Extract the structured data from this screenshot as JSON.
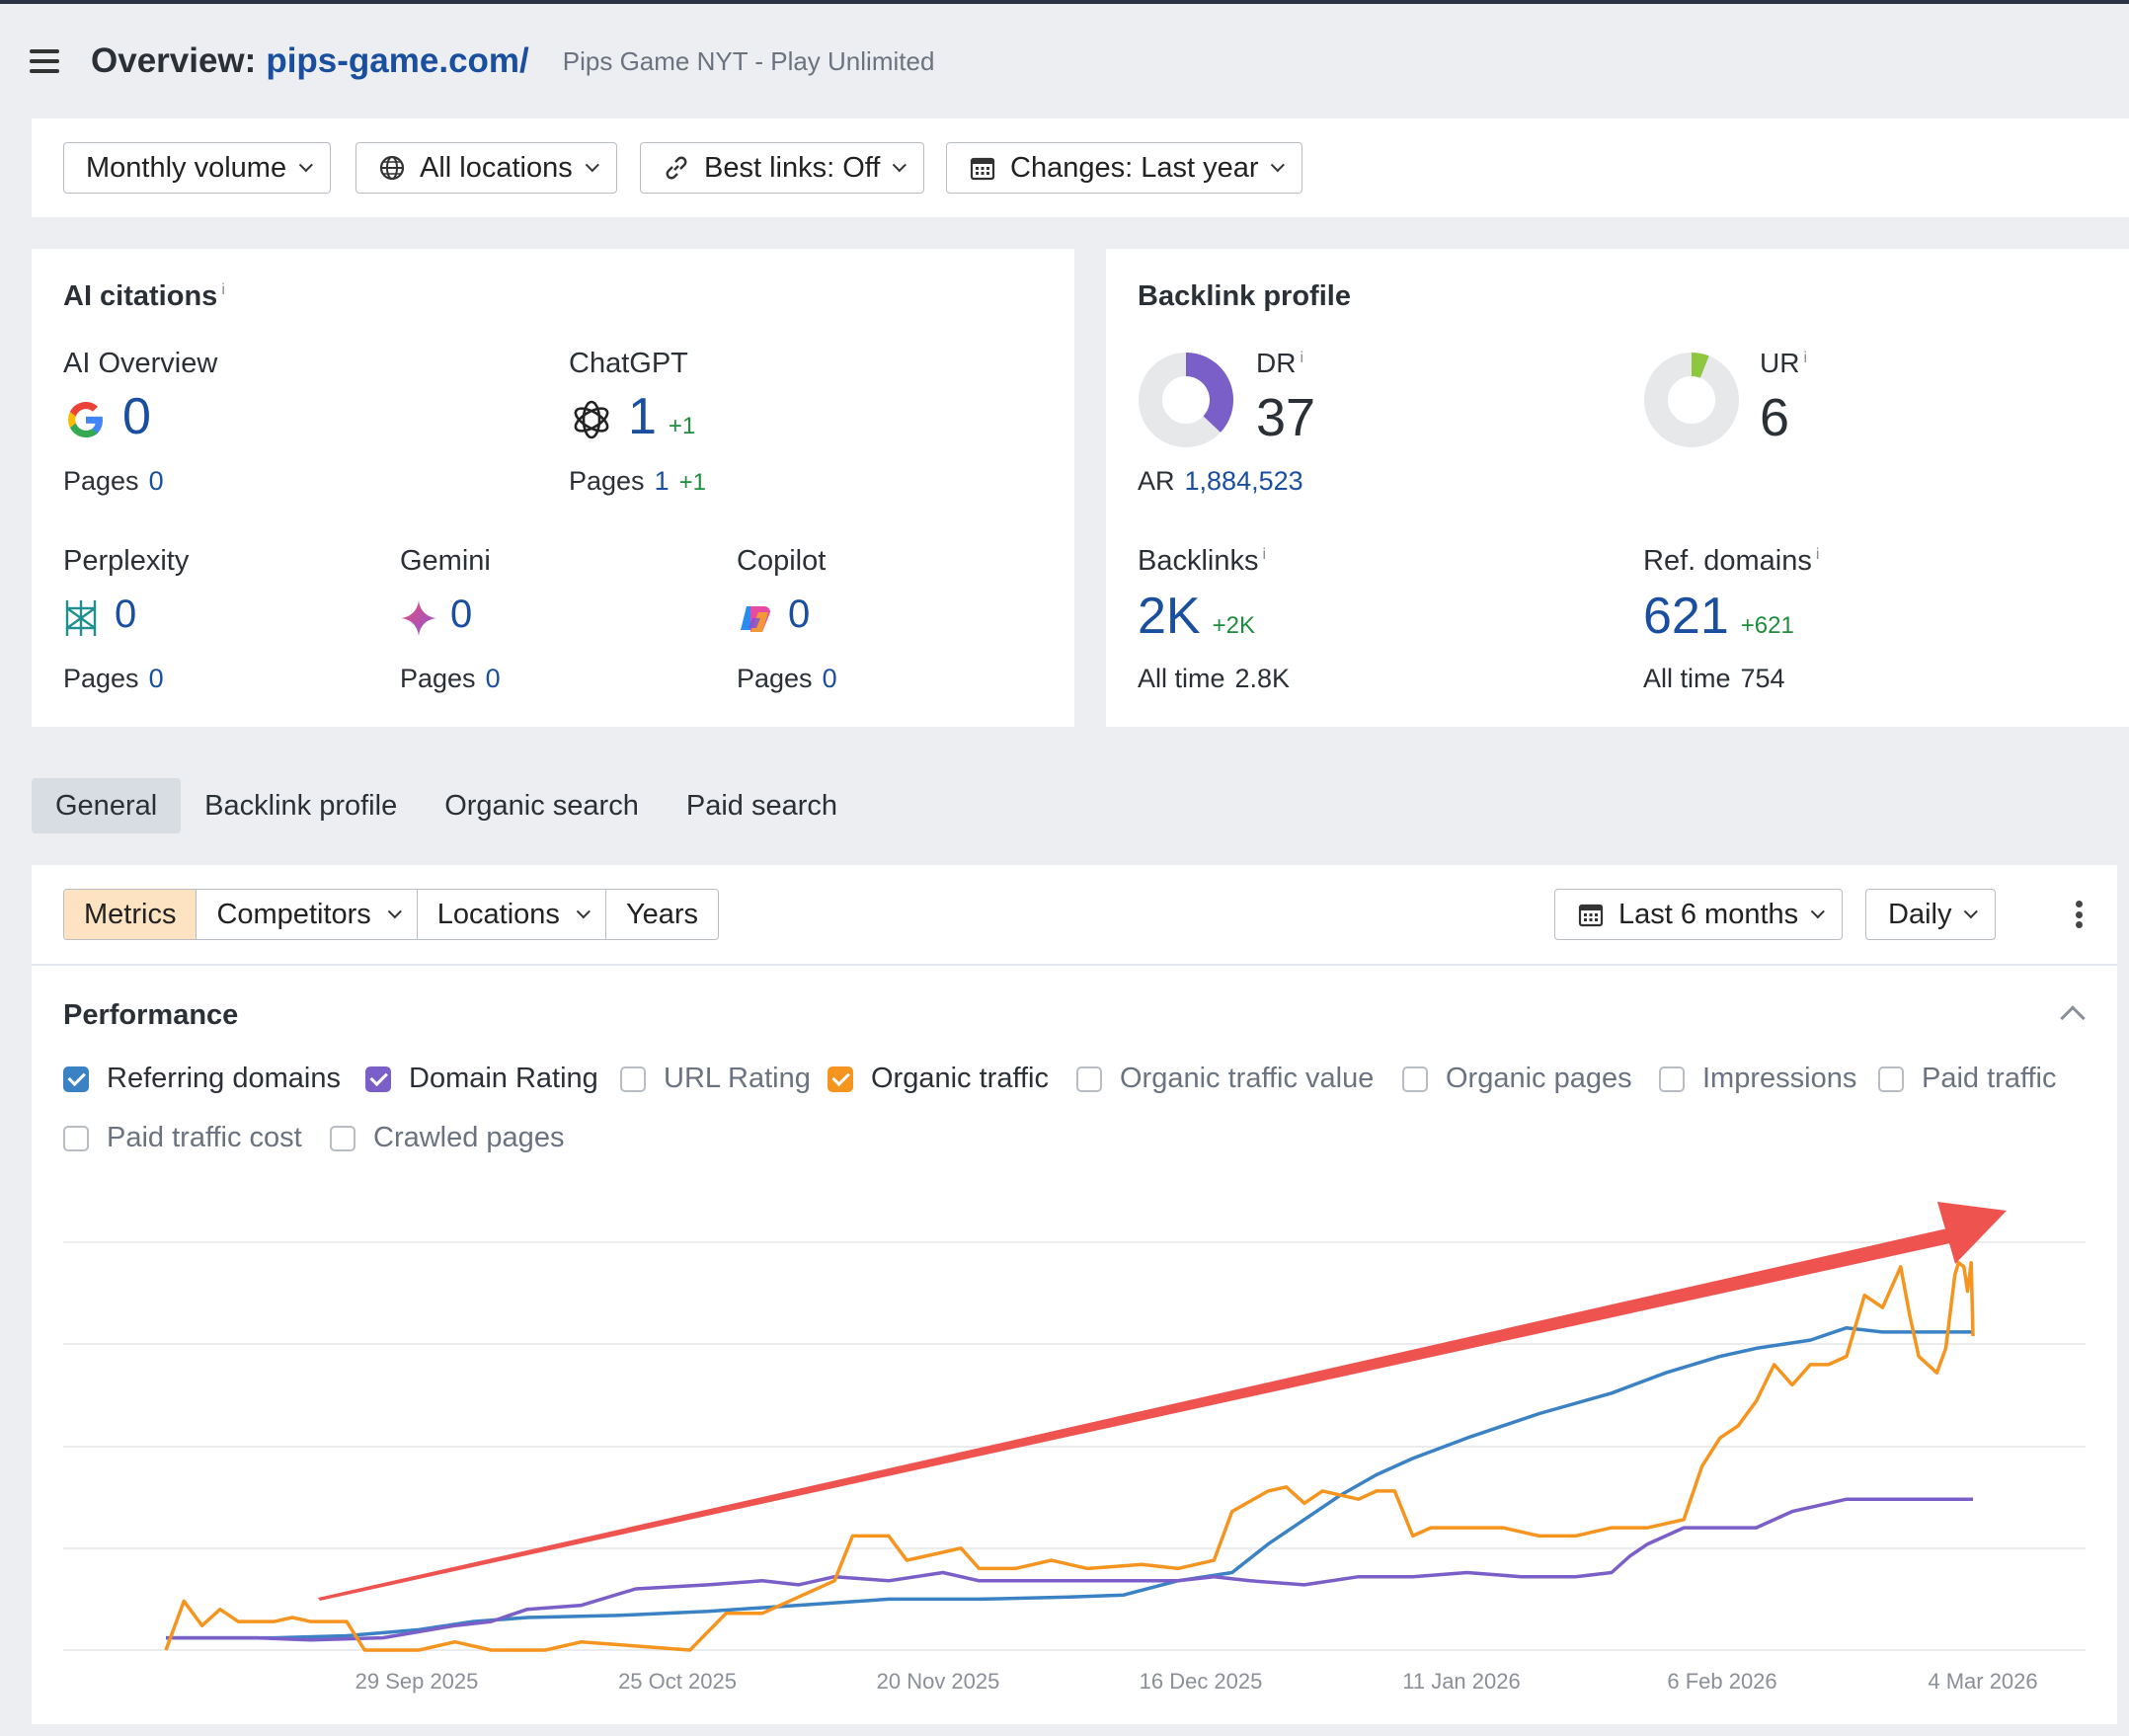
{
  "header": {
    "title": "Overview:",
    "domain": "pips-game.com/",
    "subtitle": "Pips Game NYT - Play Unlimited"
  },
  "filters": {
    "volume": "Monthly volume",
    "locations": "All locations",
    "best_links": "Best links: Off",
    "changes": "Changes: Last year"
  },
  "ai_citations": {
    "title": "AI citations",
    "info": "i",
    "ai_overview": {
      "label": "AI Overview",
      "value": "0",
      "pages_label": "Pages",
      "pages": "0"
    },
    "chatgpt": {
      "label": "ChatGPT",
      "value": "1",
      "delta": "+1",
      "pages_label": "Pages",
      "pages": "1",
      "pages_delta": "+1"
    },
    "perplexity": {
      "label": "Perplexity",
      "value": "0",
      "pages_label": "Pages",
      "pages": "0"
    },
    "gemini": {
      "label": "Gemini",
      "value": "0",
      "pages_label": "Pages",
      "pages": "0"
    },
    "copilot": {
      "label": "Copilot",
      "value": "0",
      "pages_label": "Pages",
      "pages": "0"
    }
  },
  "backlink_profile": {
    "title": "Backlink profile",
    "dr": {
      "label": "DR",
      "info": "i",
      "value": "37",
      "fill": 0.37,
      "color": "#7b5fc9"
    },
    "ur": {
      "label": "UR",
      "info": "i",
      "value": "6",
      "fill": 0.06,
      "color": "#8dc63f"
    },
    "ar": {
      "label": "AR",
      "value": "1,884,523"
    },
    "backlinks": {
      "label": "Backlinks",
      "info": "i",
      "value": "2K",
      "delta": "+2K",
      "alltime_label": "All time",
      "alltime": "2.8K"
    },
    "ref_domains": {
      "label": "Ref. domains",
      "info": "i",
      "value": "621",
      "delta": "+621",
      "alltime_label": "All time",
      "alltime": "754"
    }
  },
  "tabs": [
    "General",
    "Backlink profile",
    "Organic search",
    "Paid search"
  ],
  "chart_controls": {
    "metrics": "Metrics",
    "competitors": "Competitors",
    "locations": "Locations",
    "years": "Years",
    "range": "Last 6 months",
    "granularity": "Daily"
  },
  "performance": {
    "title": "Performance",
    "metrics": [
      {
        "label": "Referring domains",
        "checked": true,
        "color": "#3b82c4"
      },
      {
        "label": "Domain Rating",
        "checked": true,
        "color": "#7b5fc9"
      },
      {
        "label": "URL Rating",
        "checked": false
      },
      {
        "label": "Organic traffic",
        "checked": true,
        "color": "#f5941e"
      },
      {
        "label": "Organic traffic value",
        "checked": false
      },
      {
        "label": "Organic pages",
        "checked": false
      },
      {
        "label": "Impressions",
        "checked": false
      },
      {
        "label": "Paid traffic",
        "checked": false
      },
      {
        "label": "Paid traffic cost",
        "checked": false
      },
      {
        "label": "Crawled pages",
        "checked": false
      }
    ]
  },
  "chart_data": {
    "type": "line",
    "x_ticks": [
      "29 Sep 2025",
      "25 Oct 2025",
      "20 Nov 2025",
      "16 Dec 2025",
      "11 Jan 2026",
      "6 Feb 2026",
      "4 Mar 2026"
    ],
    "y_range": [
      0,
      1
    ],
    "y_units": "normalized (no y-axis labels shown)",
    "grid": true,
    "annotation": "red upward trend arrow",
    "series": [
      {
        "name": "Referring domains",
        "color": "#3b82c4",
        "points": [
          [
            0.0,
            0.03
          ],
          [
            0.06,
            0.03
          ],
          [
            0.1,
            0.035
          ],
          [
            0.14,
            0.05
          ],
          [
            0.17,
            0.07
          ],
          [
            0.2,
            0.08
          ],
          [
            0.25,
            0.085
          ],
          [
            0.3,
            0.095
          ],
          [
            0.35,
            0.11
          ],
          [
            0.4,
            0.125
          ],
          [
            0.45,
            0.125
          ],
          [
            0.5,
            0.13
          ],
          [
            0.53,
            0.135
          ],
          [
            0.56,
            0.17
          ],
          [
            0.59,
            0.19
          ],
          [
            0.61,
            0.26
          ],
          [
            0.63,
            0.32
          ],
          [
            0.65,
            0.38
          ],
          [
            0.67,
            0.43
          ],
          [
            0.69,
            0.47
          ],
          [
            0.72,
            0.52
          ],
          [
            0.76,
            0.58
          ],
          [
            0.8,
            0.63
          ],
          [
            0.83,
            0.68
          ],
          [
            0.86,
            0.72
          ],
          [
            0.88,
            0.74
          ],
          [
            0.91,
            0.76
          ],
          [
            0.93,
            0.79
          ],
          [
            0.95,
            0.78
          ],
          [
            0.97,
            0.78
          ],
          [
            1.0,
            0.78
          ]
        ]
      },
      {
        "name": "Domain Rating",
        "color": "#7b5fc9",
        "points": [
          [
            0.0,
            0.03
          ],
          [
            0.05,
            0.03
          ],
          [
            0.08,
            0.025
          ],
          [
            0.12,
            0.03
          ],
          [
            0.16,
            0.06
          ],
          [
            0.18,
            0.07
          ],
          [
            0.2,
            0.1
          ],
          [
            0.23,
            0.11
          ],
          [
            0.26,
            0.15
          ],
          [
            0.3,
            0.16
          ],
          [
            0.33,
            0.17
          ],
          [
            0.35,
            0.16
          ],
          [
            0.37,
            0.18
          ],
          [
            0.4,
            0.17
          ],
          [
            0.43,
            0.19
          ],
          [
            0.45,
            0.17
          ],
          [
            0.48,
            0.17
          ],
          [
            0.53,
            0.17
          ],
          [
            0.56,
            0.17
          ],
          [
            0.58,
            0.18
          ],
          [
            0.6,
            0.17
          ],
          [
            0.63,
            0.16
          ],
          [
            0.66,
            0.18
          ],
          [
            0.69,
            0.18
          ],
          [
            0.72,
            0.19
          ],
          [
            0.75,
            0.18
          ],
          [
            0.78,
            0.18
          ],
          [
            0.8,
            0.19
          ],
          [
            0.81,
            0.23
          ],
          [
            0.82,
            0.26
          ],
          [
            0.84,
            0.3
          ],
          [
            0.86,
            0.3
          ],
          [
            0.88,
            0.3
          ],
          [
            0.9,
            0.34
          ],
          [
            0.93,
            0.37
          ],
          [
            0.96,
            0.37
          ],
          [
            1.0,
            0.37
          ]
        ]
      },
      {
        "name": "Organic traffic",
        "color": "#f5941e",
        "points": [
          [
            0.0,
            0.0
          ],
          [
            0.01,
            0.12
          ],
          [
            0.02,
            0.06
          ],
          [
            0.03,
            0.1
          ],
          [
            0.04,
            0.07
          ],
          [
            0.06,
            0.07
          ],
          [
            0.07,
            0.08
          ],
          [
            0.08,
            0.07
          ],
          [
            0.1,
            0.07
          ],
          [
            0.11,
            0.0
          ],
          [
            0.14,
            0.0
          ],
          [
            0.16,
            0.02
          ],
          [
            0.18,
            0.0
          ],
          [
            0.21,
            0.0
          ],
          [
            0.23,
            0.02
          ],
          [
            0.26,
            0.01
          ],
          [
            0.29,
            0.0
          ],
          [
            0.31,
            0.09
          ],
          [
            0.33,
            0.09
          ],
          [
            0.35,
            0.13
          ],
          [
            0.37,
            0.17
          ],
          [
            0.38,
            0.28
          ],
          [
            0.4,
            0.28
          ],
          [
            0.41,
            0.22
          ],
          [
            0.42,
            0.23
          ],
          [
            0.44,
            0.25
          ],
          [
            0.45,
            0.2
          ],
          [
            0.47,
            0.2
          ],
          [
            0.49,
            0.22
          ],
          [
            0.51,
            0.2
          ],
          [
            0.54,
            0.21
          ],
          [
            0.56,
            0.2
          ],
          [
            0.58,
            0.22
          ],
          [
            0.59,
            0.34
          ],
          [
            0.61,
            0.39
          ],
          [
            0.62,
            0.4
          ],
          [
            0.63,
            0.36
          ],
          [
            0.64,
            0.39
          ],
          [
            0.66,
            0.37
          ],
          [
            0.67,
            0.39
          ],
          [
            0.68,
            0.39
          ],
          [
            0.69,
            0.28
          ],
          [
            0.7,
            0.3
          ],
          [
            0.72,
            0.3
          ],
          [
            0.74,
            0.3
          ],
          [
            0.76,
            0.28
          ],
          [
            0.78,
            0.28
          ],
          [
            0.8,
            0.3
          ],
          [
            0.82,
            0.3
          ],
          [
            0.84,
            0.32
          ],
          [
            0.85,
            0.45
          ],
          [
            0.86,
            0.52
          ],
          [
            0.87,
            0.55
          ],
          [
            0.88,
            0.61
          ],
          [
            0.89,
            0.7
          ],
          [
            0.9,
            0.65
          ],
          [
            0.91,
            0.7
          ],
          [
            0.92,
            0.7
          ],
          [
            0.93,
            0.72
          ],
          [
            0.94,
            0.87
          ],
          [
            0.95,
            0.84
          ],
          [
            0.96,
            0.94
          ],
          [
            0.965,
            0.82
          ],
          [
            0.97,
            0.72
          ],
          [
            0.98,
            0.68
          ],
          [
            0.985,
            0.74
          ],
          [
            0.99,
            0.92
          ],
          [
            0.992,
            0.95
          ],
          [
            0.995,
            0.94
          ],
          [
            0.997,
            0.88
          ],
          [
            0.999,
            0.95
          ],
          [
            1.0,
            0.77
          ]
        ]
      }
    ]
  }
}
